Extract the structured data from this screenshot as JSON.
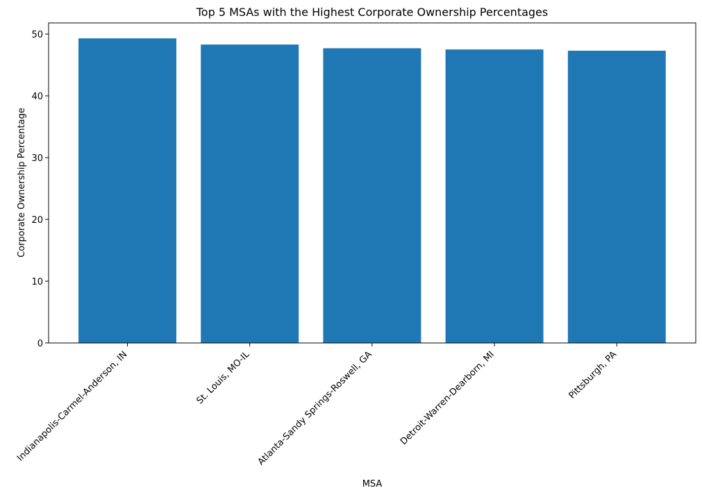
{
  "chart_data": {
    "type": "bar",
    "title": "Top 5 MSAs with the Highest Corporate Ownership Percentages",
    "xlabel": "MSA",
    "ylabel": "Corporate Ownership Percentage",
    "categories": [
      "Indianapolis-Carmel-Anderson, IN",
      "St. Louis, MO-IL",
      "Atlanta-Sandy Springs-Roswell, GA",
      "Detroit-Warren-Dearborn, MI",
      "Pittsburgh, PA"
    ],
    "values": [
      49.3,
      48.3,
      47.7,
      47.5,
      47.3
    ],
    "ylim": [
      0,
      51.8
    ],
    "yticks": [
      0,
      10,
      20,
      30,
      40,
      50
    ],
    "bar_color": "#1f77b4",
    "grid": false,
    "legend": "none"
  }
}
